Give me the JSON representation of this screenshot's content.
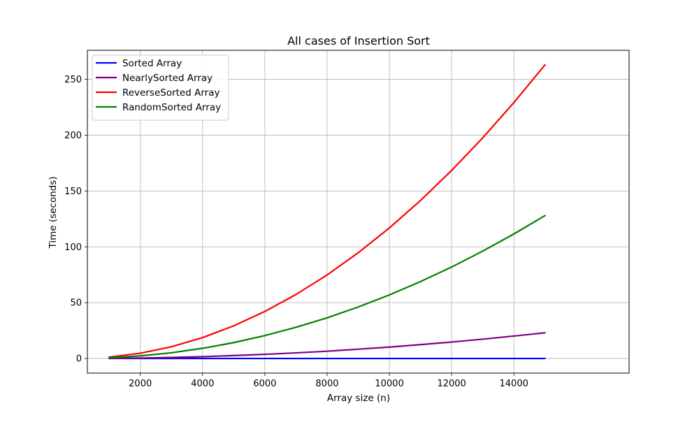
{
  "chart_data": {
    "type": "line",
    "title": "All cases of Insertion Sort",
    "xlabel": "Array size (n)",
    "ylabel": "Time (seconds)",
    "xlim": [
      300,
      17700
    ],
    "ylim": [
      -13.1,
      276
    ],
    "xticks": [
      2000,
      4000,
      6000,
      8000,
      10000,
      12000,
      14000
    ],
    "yticks": [
      0,
      50,
      100,
      150,
      200,
      250
    ],
    "grid": true,
    "legend_position": "upper-left",
    "x": [
      1000,
      2000,
      3000,
      4000,
      5000,
      6000,
      7000,
      8000,
      9000,
      10000,
      11000,
      12000,
      13000,
      14000,
      15000
    ],
    "series": [
      {
        "name": "Sorted Array",
        "color": "#0000ff",
        "values": [
          0,
          0,
          0,
          0,
          0,
          0,
          0,
          0,
          0,
          0,
          0,
          0,
          0,
          0,
          0
        ]
      },
      {
        "name": "NearlySorted Array",
        "color": "#800080",
        "values": [
          0.1,
          0.4,
          0.9,
          1.6,
          2.6,
          3.7,
          5.0,
          6.5,
          8.3,
          10.2,
          12.4,
          14.7,
          17.3,
          20.1,
          23.0
        ]
      },
      {
        "name": "ReverseSorted Array",
        "color": "#ff0000",
        "values": [
          1.2,
          4.7,
          10.5,
          18.7,
          29.2,
          42.1,
          57.3,
          74.8,
          94.7,
          116.9,
          141.5,
          168.4,
          197.6,
          229.2,
          263.0
        ]
      },
      {
        "name": "RandomSorted Array",
        "color": "#008000",
        "values": [
          0.6,
          2.3,
          5.1,
          9.1,
          14.2,
          20.5,
          27.9,
          36.4,
          46.1,
          56.9,
          68.9,
          81.9,
          96.2,
          111.5,
          128.0
        ]
      }
    ]
  }
}
